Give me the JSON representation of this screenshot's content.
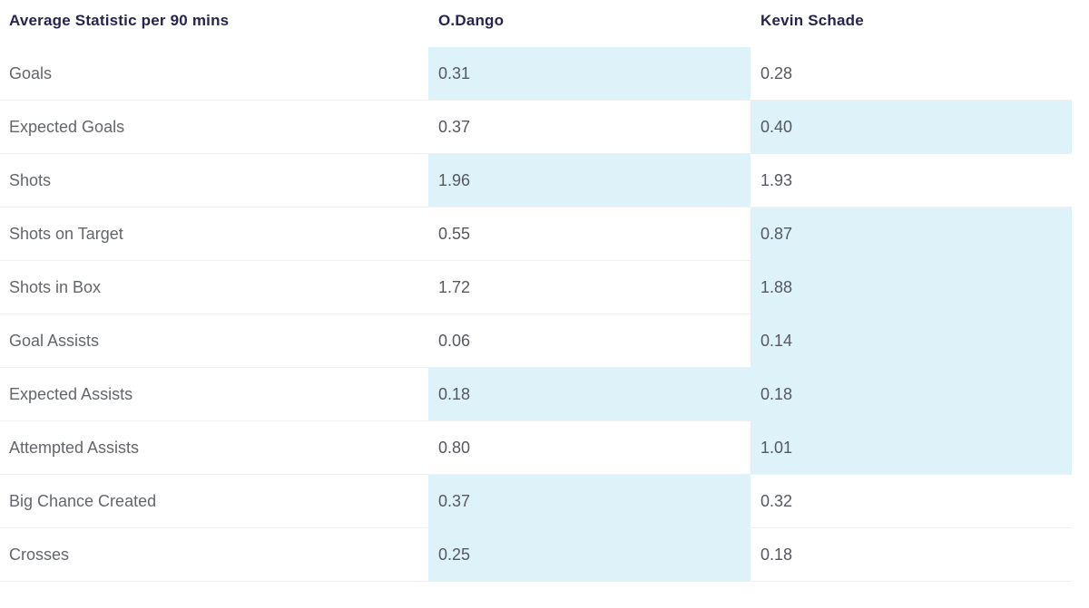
{
  "table": {
    "columns": [
      {
        "label": "Average Statistic per 90 mins"
      },
      {
        "label": "O.Dango"
      },
      {
        "label": "Kevin Schade"
      }
    ],
    "rows": [
      {
        "stat": "Goals",
        "p1": "0.31",
        "p2": "0.28",
        "p1_highlight": true,
        "p2_highlight": false
      },
      {
        "stat": "Expected Goals",
        "p1": "0.37",
        "p2": "0.40",
        "p1_highlight": false,
        "p2_highlight": true
      },
      {
        "stat": "Shots",
        "p1": "1.96",
        "p2": "1.93",
        "p1_highlight": true,
        "p2_highlight": false
      },
      {
        "stat": "Shots on Target",
        "p1": "0.55",
        "p2": "0.87",
        "p1_highlight": false,
        "p2_highlight": true
      },
      {
        "stat": "Shots in Box",
        "p1": "1.72",
        "p2": "1.88",
        "p1_highlight": false,
        "p2_highlight": true
      },
      {
        "stat": "Goal Assists",
        "p1": "0.06",
        "p2": "0.14",
        "p1_highlight": false,
        "p2_highlight": true
      },
      {
        "stat": "Expected Assists",
        "p1": "0.18",
        "p2": "0.18",
        "p1_highlight": true,
        "p2_highlight": true
      },
      {
        "stat": "Attempted Assists",
        "p1": "0.80",
        "p2": "1.01",
        "p1_highlight": false,
        "p2_highlight": true
      },
      {
        "stat": "Big Chance Created",
        "p1": "0.37",
        "p2": "0.32",
        "p1_highlight": true,
        "p2_highlight": false
      },
      {
        "stat": "Crosses",
        "p1": "0.25",
        "p2": "0.18",
        "p1_highlight": true,
        "p2_highlight": false
      }
    ],
    "colors": {
      "highlight": "#ddf3f9",
      "header_text": "#272450",
      "label_text": "#63666a",
      "value_text": "#55585e",
      "divider": "#efefef",
      "background": "#ffffff"
    }
  }
}
